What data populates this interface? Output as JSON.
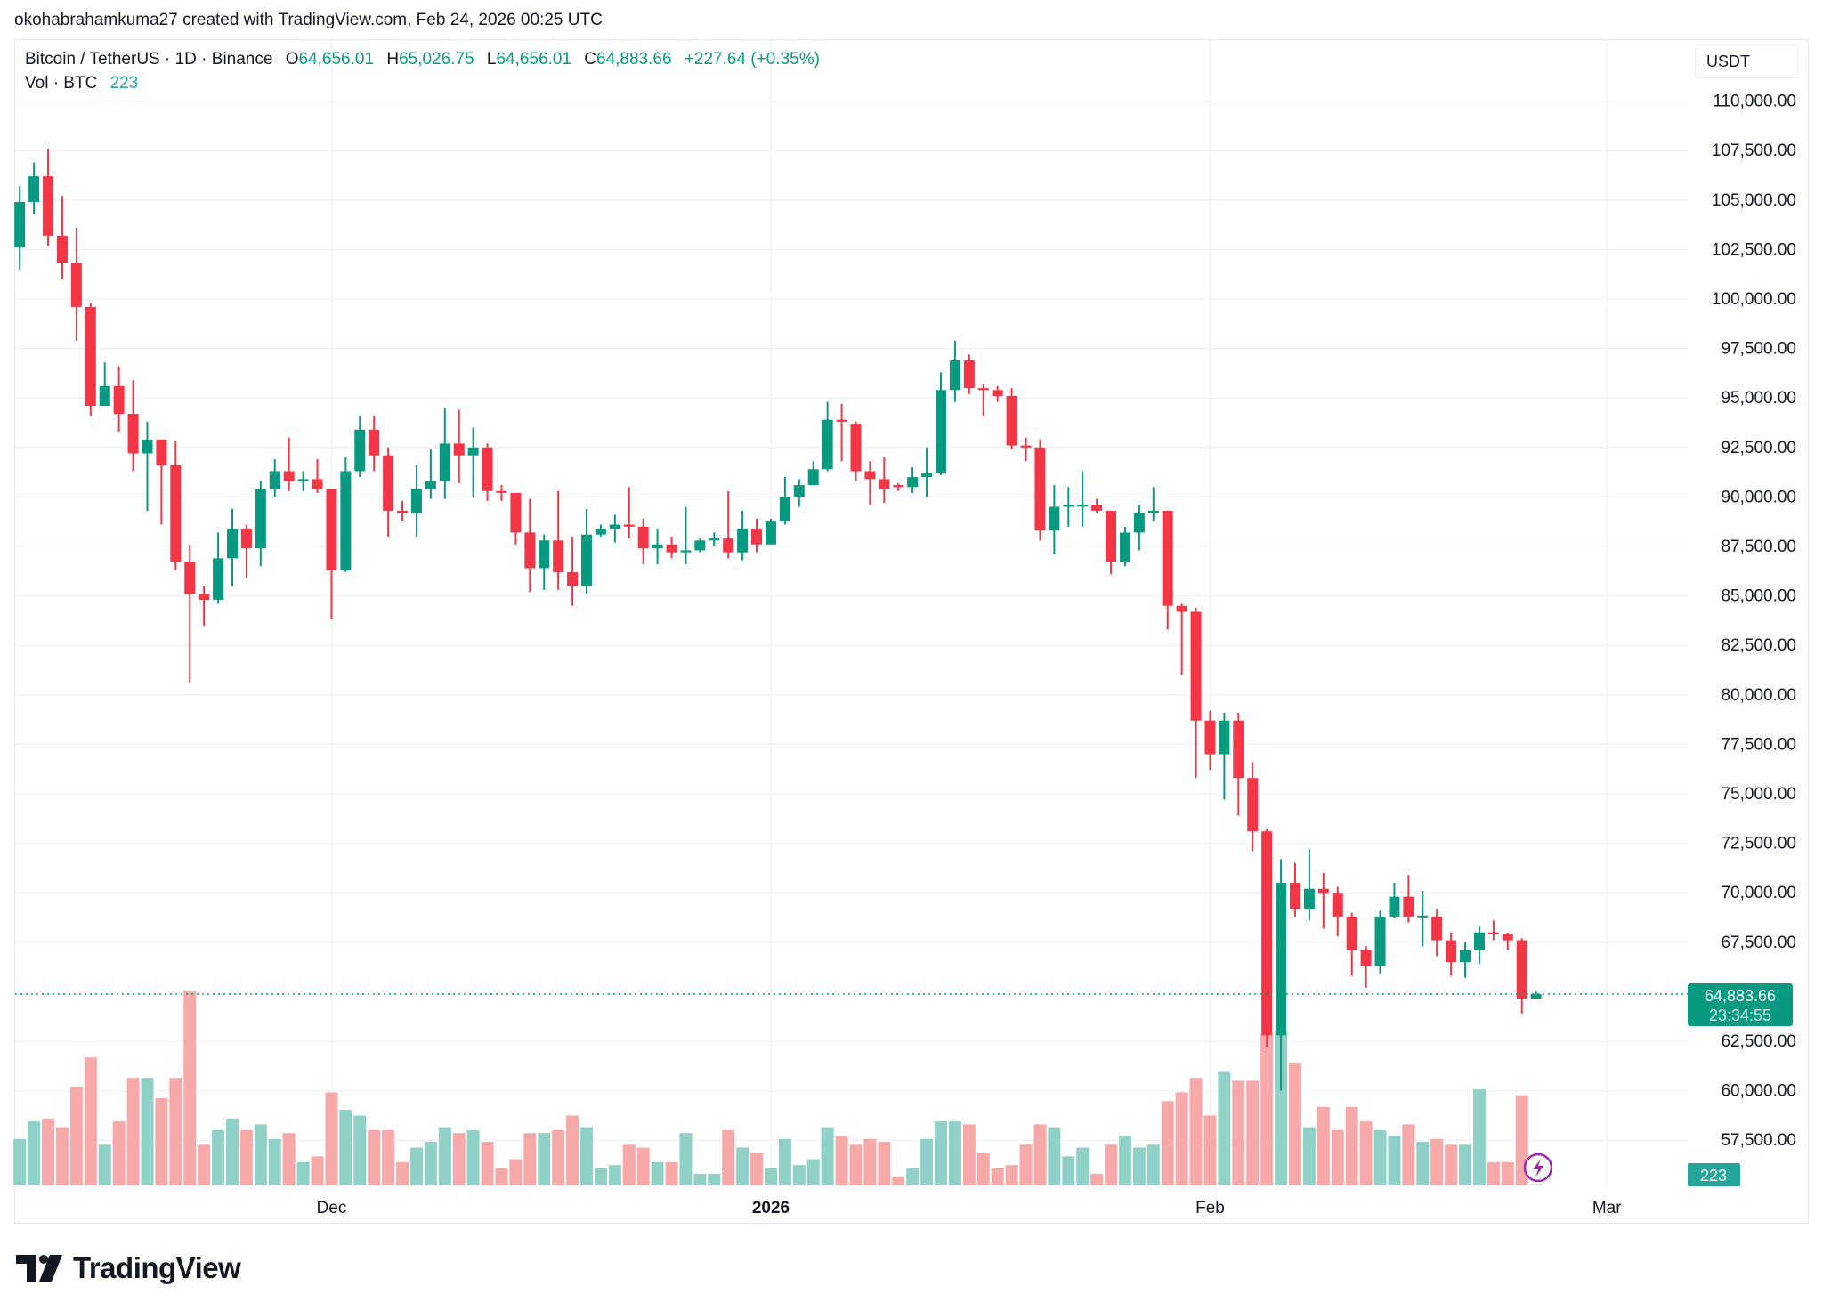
{
  "credit": "okohabrahamkuma27 created with TradingView.com, Feb 24, 2026 00:25 UTC",
  "legend": {
    "symbol": "Bitcoin / TetherUS · 1D · Binance",
    "o_label": "O",
    "o": "64,656.01",
    "h_label": "H",
    "h": "65,026.75",
    "l_label": "L",
    "l": "64,656.01",
    "c_label": "C",
    "c": "64,883.66",
    "change": "+227.64 (+0.35%)",
    "vol_label": "Vol · BTC",
    "vol": "223"
  },
  "unit": "USDT",
  "last_price_label": "64,883.66",
  "countdown": "23:34:55",
  "vol_badge": "223",
  "brand": "TradingView",
  "colors": {
    "up": "#089981",
    "down": "#f23645",
    "vol_up": "#8fd1c6",
    "vol_down": "#f7a8a8",
    "grid": "#f0f1f4"
  },
  "chart_data": {
    "type": "candlestick",
    "title": "Bitcoin / TetherUS · 1D · Binance",
    "xlabel": "",
    "ylabel": "USDT",
    "first_date": "2025-11-09",
    "ylim": [
      57500,
      110000
    ],
    "yticks": [
      {
        "value": 110000,
        "label": "110,000.00"
      },
      {
        "value": 107500,
        "label": "107,500.00"
      },
      {
        "value": 105000,
        "label": "105,000.00"
      },
      {
        "value": 102500,
        "label": "102,500.00"
      },
      {
        "value": 100000,
        "label": "100,000.00"
      },
      {
        "value": 97500,
        "label": "97,500.00"
      },
      {
        "value": 95000,
        "label": "95,000.00"
      },
      {
        "value": 92500,
        "label": "92,500.00"
      },
      {
        "value": 90000,
        "label": "90,000.00"
      },
      {
        "value": 87500,
        "label": "87,500.00"
      },
      {
        "value": 85000,
        "label": "85,000.00"
      },
      {
        "value": 82500,
        "label": "82,500.00"
      },
      {
        "value": 80000,
        "label": "80,000.00"
      },
      {
        "value": 77500,
        "label": "77,500.00"
      },
      {
        "value": 75000,
        "label": "75,000.00"
      },
      {
        "value": 72500,
        "label": "72,500.00"
      },
      {
        "value": 70000,
        "label": "70,000.00"
      },
      {
        "value": 67500,
        "label": "67,500.00"
      },
      {
        "value": 62500,
        "label": "62,500.00"
      },
      {
        "value": 60000,
        "label": "60,000.00"
      },
      {
        "value": 57500,
        "label": "57,500.00"
      }
    ],
    "xticks": [
      {
        "index": 22,
        "label": "Dec",
        "bold": false
      },
      {
        "index": 53,
        "label": "2026",
        "bold": true
      },
      {
        "index": 84,
        "label": "Feb",
        "bold": false
      },
      {
        "index": 112,
        "label": "Mar",
        "bold": false
      }
    ],
    "last_price": 64883.66,
    "volume_unit": "thousand BTC (estimated)",
    "ohlcv": [
      [
        102600,
        105700,
        101500,
        104900,
        16
      ],
      [
        104900,
        106900,
        104300,
        106200,
        22
      ],
      [
        106200,
        107600,
        102700,
        103200,
        23
      ],
      [
        103200,
        105200,
        101000,
        101800,
        20
      ],
      [
        101800,
        103600,
        97900,
        99600,
        34
      ],
      [
        99600,
        99800,
        94100,
        94600,
        44
      ],
      [
        94600,
        96800,
        94600,
        95600,
        14
      ],
      [
        95600,
        96600,
        93300,
        94200,
        22
      ],
      [
        94200,
        95900,
        91300,
        92200,
        37
      ],
      [
        92200,
        93800,
        89300,
        92900,
        37
      ],
      [
        92900,
        92900,
        88600,
        91600,
        30
      ],
      [
        91600,
        92800,
        86300,
        86700,
        37
      ],
      [
        86700,
        87600,
        80600,
        85100,
        67
      ],
      [
        85100,
        85500,
        83500,
        84800,
        14
      ],
      [
        84800,
        88200,
        84600,
        86900,
        19
      ],
      [
        86900,
        89400,
        85500,
        88400,
        23
      ],
      [
        88400,
        88600,
        85900,
        87400,
        19
      ],
      [
        87400,
        90800,
        86500,
        90400,
        21
      ],
      [
        90400,
        91900,
        90000,
        91300,
        16
      ],
      [
        91300,
        93000,
        90300,
        90800,
        18
      ],
      [
        90800,
        91300,
        90300,
        90900,
        8
      ],
      [
        90900,
        91900,
        90200,
        90400,
        10
      ],
      [
        90400,
        90400,
        83800,
        86300,
        32
      ],
      [
        86300,
        92000,
        86200,
        91300,
        26
      ],
      [
        91300,
        94100,
        91000,
        93400,
        24
      ],
      [
        93400,
        94100,
        91300,
        92100,
        19
      ],
      [
        92100,
        92500,
        88000,
        89300,
        19
      ],
      [
        89300,
        89800,
        88800,
        89200,
        8
      ],
      [
        89200,
        91600,
        88000,
        90400,
        13
      ],
      [
        90400,
        92400,
        89900,
        90800,
        15
      ],
      [
        90800,
        94500,
        89900,
        92700,
        20
      ],
      [
        92700,
        94400,
        90700,
        92100,
        18
      ],
      [
        92100,
        93500,
        90000,
        92500,
        19
      ],
      [
        92500,
        92700,
        89800,
        90300,
        15
      ],
      [
        90300,
        90600,
        89800,
        90200,
        6
      ],
      [
        90200,
        90200,
        87600,
        88200,
        9
      ],
      [
        88200,
        89900,
        85200,
        86400,
        18
      ],
      [
        86400,
        88100,
        85300,
        87800,
        18
      ],
      [
        87800,
        90300,
        85300,
        86200,
        19
      ],
      [
        86200,
        88000,
        84500,
        85500,
        24
      ],
      [
        85500,
        89400,
        85100,
        88100,
        20
      ],
      [
        88100,
        88600,
        88000,
        88400,
        6
      ],
      [
        88400,
        89100,
        87700,
        88600,
        7
      ],
      [
        88600,
        90500,
        87900,
        88500,
        14
      ],
      [
        88500,
        88900,
        86600,
        87400,
        13
      ],
      [
        87400,
        88400,
        86600,
        87600,
        8
      ],
      [
        87600,
        88000,
        86900,
        87200,
        8
      ],
      [
        87200,
        89500,
        86600,
        87300,
        18
      ],
      [
        87300,
        87900,
        87200,
        87800,
        4
      ],
      [
        87800,
        88200,
        87500,
        87900,
        4
      ],
      [
        87900,
        90300,
        86900,
        87200,
        19
      ],
      [
        87200,
        89300,
        86800,
        88400,
        13
      ],
      [
        88400,
        88900,
        87200,
        87600,
        11
      ],
      [
        87600,
        88900,
        87600,
        88800,
        6
      ],
      [
        88800,
        91000,
        88600,
        90000,
        16
      ],
      [
        90000,
        90900,
        89500,
        90600,
        7
      ],
      [
        90600,
        91800,
        90600,
        91400,
        9
      ],
      [
        91400,
        94800,
        91300,
        93900,
        20
      ],
      [
        93900,
        94700,
        91800,
        93800,
        17
      ],
      [
        93700,
        93800,
        90800,
        91300,
        14
      ],
      [
        91300,
        91800,
        89600,
        90900,
        16
      ],
      [
        90900,
        92000,
        89700,
        90400,
        15
      ],
      [
        90600,
        90700,
        90300,
        90500,
        3
      ],
      [
        90500,
        91500,
        90200,
        91000,
        6
      ],
      [
        91000,
        92500,
        90000,
        91200,
        16
      ],
      [
        91200,
        96300,
        91100,
        95400,
        22
      ],
      [
        95400,
        97900,
        94800,
        96900,
        22
      ],
      [
        96900,
        97200,
        95200,
        95500,
        21
      ],
      [
        95500,
        95700,
        94100,
        95400,
        11
      ],
      [
        95400,
        95600,
        94800,
        95100,
        6
      ],
      [
        95100,
        95500,
        92400,
        92600,
        7
      ],
      [
        92600,
        93000,
        91800,
        92500,
        14
      ],
      [
        92500,
        92900,
        87800,
        88300,
        21
      ],
      [
        88300,
        90600,
        87100,
        89500,
        20
      ],
      [
        89500,
        90500,
        88500,
        89600,
        10
      ],
      [
        89600,
        91300,
        88500,
        89600,
        13
      ],
      [
        89600,
        89900,
        89200,
        89300,
        4
      ],
      [
        89300,
        89300,
        86100,
        86700,
        14
      ],
      [
        86700,
        88500,
        86500,
        88200,
        17
      ],
      [
        88200,
        89600,
        87300,
        89200,
        13
      ],
      [
        89200,
        90500,
        88800,
        89300,
        14
      ],
      [
        89300,
        89300,
        83300,
        84500,
        29
      ],
      [
        84500,
        84600,
        81000,
        84200,
        32
      ],
      [
        84200,
        84400,
        75800,
        78700,
        37
      ],
      [
        78700,
        79200,
        76200,
        77000,
        24
      ],
      [
        77000,
        79100,
        74700,
        78700,
        39
      ],
      [
        78700,
        79100,
        73900,
        75800,
        36
      ],
      [
        75800,
        76600,
        72100,
        73100,
        36
      ],
      [
        73100,
        73200,
        62200,
        62800,
        52
      ],
      [
        62800,
        71700,
        60000,
        70500,
        53
      ],
      [
        70500,
        71500,
        68800,
        69200,
        42
      ],
      [
        69200,
        72200,
        68600,
        70200,
        20
      ],
      [
        70200,
        71000,
        68200,
        70000,
        27
      ],
      [
        70000,
        70300,
        67800,
        68800,
        19
      ],
      [
        68800,
        69000,
        65800,
        67100,
        27
      ],
      [
        67100,
        67300,
        65200,
        66300,
        22
      ],
      [
        66300,
        69100,
        65900,
        68800,
        19
      ],
      [
        68800,
        70500,
        68700,
        69800,
        17
      ],
      [
        69800,
        70900,
        68500,
        68800,
        21
      ],
      [
        68800,
        70100,
        67300,
        68850,
        15
      ],
      [
        68800,
        69200,
        66800,
        67600,
        16
      ],
      [
        67600,
        68000,
        65800,
        66500,
        14
      ],
      [
        66500,
        67500,
        65700,
        67100,
        14
      ],
      [
        67100,
        68300,
        66400,
        68000,
        33
      ],
      [
        68000,
        68600,
        67600,
        67900,
        8
      ],
      [
        67900,
        68000,
        67100,
        67600,
        8
      ],
      [
        67600,
        67700,
        63900,
        64656,
        31
      ],
      [
        64656.01,
        65026.75,
        64656.01,
        64883.66,
        0.223
      ]
    ]
  }
}
